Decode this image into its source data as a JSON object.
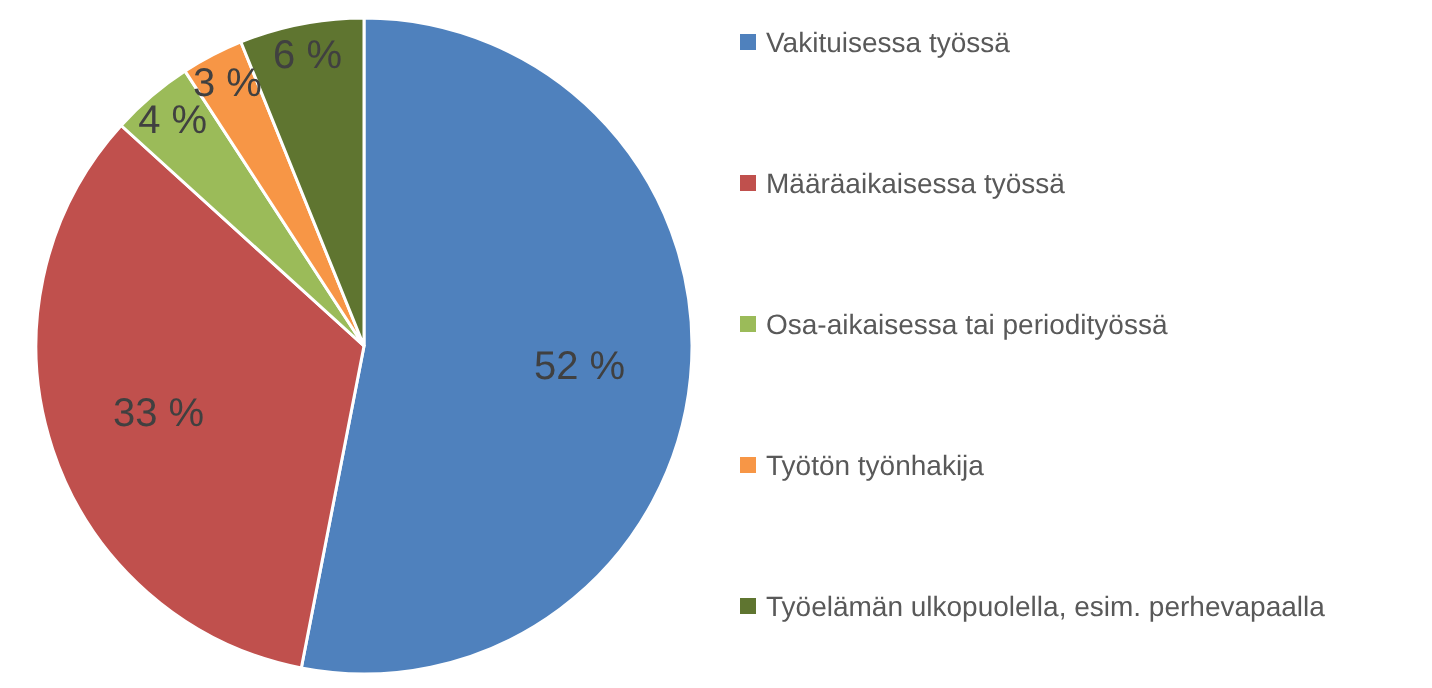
{
  "chart_data": {
    "type": "pie",
    "categories": [
      "Vakituisessa työssä",
      "Määräaikaisessa työssä",
      "Osa-aikaisessa tai periodityössä",
      "Työtön työnhakija",
      "Työelämän ulkopuolella, esim. perhevapaalla"
    ],
    "values": [
      52,
      33,
      4,
      3,
      6
    ],
    "colors": [
      "#4f81bd",
      "#c0504d",
      "#9bbb59",
      "#f79646",
      "#5f7530"
    ],
    "value_labels": [
      "52 %",
      "33 %",
      "4 %",
      "3 %",
      "6 %"
    ],
    "legend": "right"
  }
}
